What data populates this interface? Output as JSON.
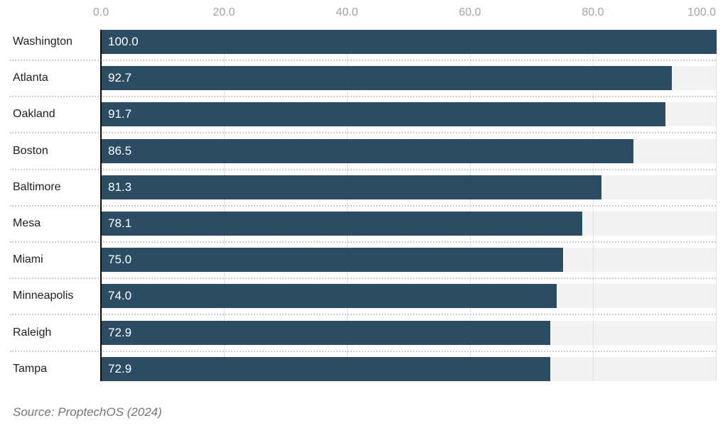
{
  "chart_data": {
    "type": "bar",
    "orientation": "horizontal",
    "categories": [
      "Washington",
      "Atlanta",
      "Oakland",
      "Boston",
      "Baltimore",
      "Mesa",
      "Miami",
      "Minneapolis",
      "Raleigh",
      "Tampa"
    ],
    "values": [
      100.0,
      92.7,
      91.7,
      86.5,
      81.3,
      78.1,
      75.0,
      74.0,
      72.9,
      72.9
    ],
    "value_labels": [
      "100.0",
      "92.7",
      "91.7",
      "86.5",
      "81.3",
      "78.1",
      "75.0",
      "74.0",
      "72.9",
      "72.9"
    ],
    "x_tick_values": [
      0,
      20,
      40,
      60,
      80,
      100
    ],
    "x_tick_labels": [
      "0.0",
      "20.0",
      "40.0",
      "60.0",
      "80.0",
      "100.0"
    ],
    "xlim": [
      0,
      100
    ],
    "grid": true,
    "legend": "none",
    "source": "Source: ProptechOS (2024)",
    "colors": {
      "bar": "#2b4c63",
      "track": "#f2f2f2",
      "gridline": "#e0e0e0",
      "axis_line": "#0a0a0a",
      "tick_label": "#a3a3a3",
      "category_label": "#212121",
      "value_label": "#ffffff",
      "separator": "#cfcfcf",
      "source_text": "#757575"
    }
  }
}
